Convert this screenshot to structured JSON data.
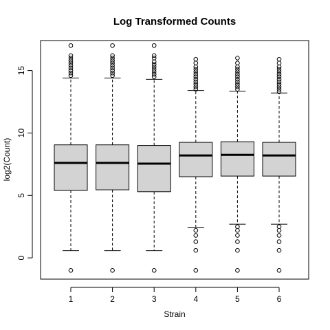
{
  "chart_data": {
    "type": "boxplot",
    "title": "Log Transformed Counts",
    "xlabel": "Strain",
    "ylabel": "log2(Count)",
    "categories": [
      "1",
      "2",
      "3",
      "4",
      "5",
      "6"
    ],
    "ylim": [
      -1.7,
      17.4
    ],
    "yticks": [
      0,
      5,
      10,
      15
    ],
    "box_fill": "#d3d3d3",
    "boxes": [
      {
        "name": "1",
        "q1": 5.4,
        "median": 7.6,
        "q3": 9.05,
        "whisker_low": 0.58,
        "whisker_high": 14.4,
        "outliers_high": [
          14.6,
          14.8,
          15.0,
          15.2,
          15.4,
          15.6,
          15.8,
          16.0,
          16.2,
          17.0
        ],
        "outliers_low": [
          -1.0
        ]
      },
      {
        "name": "2",
        "q1": 5.45,
        "median": 7.6,
        "q3": 9.05,
        "whisker_low": 0.58,
        "whisker_high": 14.4,
        "outliers_high": [
          14.6,
          14.8,
          15.0,
          15.2,
          15.4,
          15.6,
          15.8,
          16.0,
          16.2,
          17.0
        ],
        "outliers_low": [
          -1.0
        ]
      },
      {
        "name": "3",
        "q1": 5.3,
        "median": 7.55,
        "q3": 9.0,
        "whisker_low": 0.58,
        "whisker_high": 14.3,
        "outliers_high": [
          14.5,
          14.7,
          14.9,
          15.1,
          15.3,
          15.5,
          15.7,
          16.0,
          16.2,
          17.0
        ],
        "outliers_low": [
          -1.0
        ]
      },
      {
        "name": "4",
        "q1": 6.5,
        "median": 8.2,
        "q3": 9.25,
        "whisker_low": 2.45,
        "whisker_high": 13.4,
        "outliers_high": [
          13.5,
          13.7,
          13.9,
          14.1,
          14.3,
          14.5,
          14.7,
          14.9,
          15.1,
          15.3,
          15.6,
          15.9
        ],
        "outliers_low": [
          2.2,
          1.8,
          1.3,
          0.6,
          -1.0
        ]
      },
      {
        "name": "5",
        "q1": 6.55,
        "median": 8.25,
        "q3": 9.3,
        "whisker_low": 2.7,
        "whisker_high": 13.35,
        "outliers_high": [
          13.5,
          13.7,
          13.9,
          14.1,
          14.3,
          14.5,
          14.7,
          14.9,
          15.1,
          15.3,
          15.6,
          16.0
        ],
        "outliers_low": [
          2.5,
          2.2,
          1.8,
          1.3,
          0.6,
          -1.0
        ]
      },
      {
        "name": "6",
        "q1": 6.55,
        "median": 8.2,
        "q3": 9.25,
        "whisker_low": 2.7,
        "whisker_high": 13.2,
        "outliers_high": [
          13.3,
          13.5,
          13.7,
          13.9,
          14.1,
          14.3,
          14.5,
          14.7,
          14.9,
          15.1,
          15.3,
          15.6,
          15.9
        ],
        "outliers_low": [
          2.5,
          2.2,
          1.8,
          1.3,
          0.6,
          -1.0
        ]
      }
    ]
  }
}
